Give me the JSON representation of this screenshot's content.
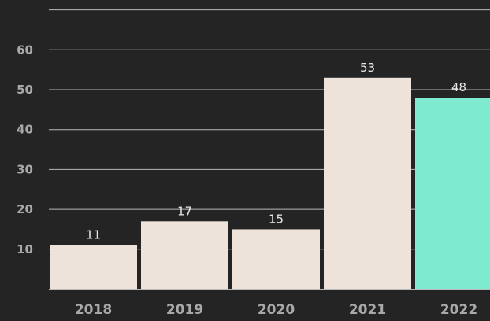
{
  "chart_data": {
    "type": "bar",
    "title": "",
    "xlabel": "",
    "ylabel": "",
    "categories": [
      "2018",
      "2019",
      "2020",
      "2021",
      "2022"
    ],
    "values": [
      11,
      17,
      15,
      53,
      48
    ],
    "data_labels": [
      "11",
      "17",
      "15",
      "53",
      "48"
    ],
    "yticks": [
      10,
      20,
      30,
      40,
      50,
      60
    ],
    "ylim": [
      0,
      70
    ],
    "grid": true,
    "legend": "none",
    "colors": {
      "background": "#242424",
      "bar": "#ede3da",
      "highlight_bar": "#7eead0",
      "gridline": "#b9b9b9",
      "tick_text": "#a8a8a8",
      "data_label_text": "#e8e8e8"
    },
    "highlight_category": "2022"
  }
}
